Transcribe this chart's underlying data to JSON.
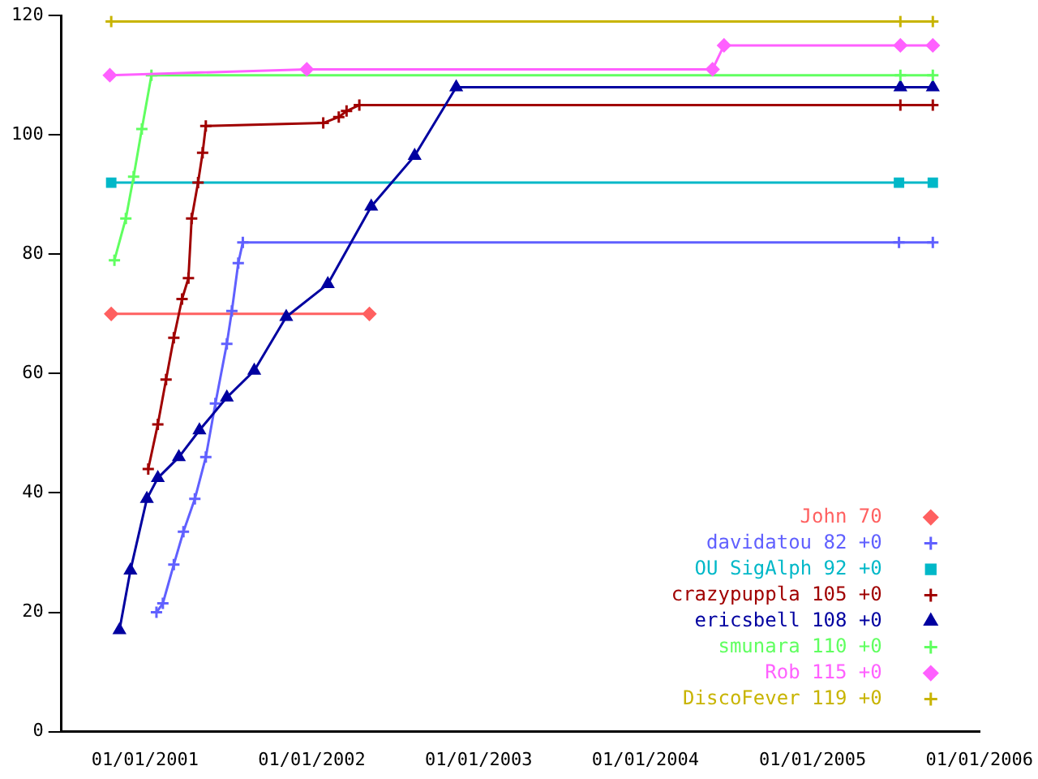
{
  "chart_data": {
    "type": "line",
    "xlim": [
      "2000-07-02",
      "2006-01-01"
    ],
    "xticks": [
      {
        "value": "2001-01-01",
        "label": "01/01/2001"
      },
      {
        "value": "2002-01-01",
        "label": "01/01/2002"
      },
      {
        "value": "2003-01-01",
        "label": "01/01/2003"
      },
      {
        "value": "2004-01-01",
        "label": "01/01/2004"
      },
      {
        "value": "2005-01-01",
        "label": "01/01/2005"
      },
      {
        "value": "2006-01-01",
        "label": "01/01/2006"
      }
    ],
    "ylim": [
      0,
      120
    ],
    "yticks": [
      0,
      20,
      40,
      60,
      80,
      100,
      120
    ],
    "legend": "bottom right",
    "series": [
      {
        "name": "John 70",
        "color": "#ff6060",
        "marker": "diamond",
        "x": [
          "2000-10-19",
          "2002-05-07"
        ],
        "values": [
          70,
          70
        ]
      },
      {
        "name": "davidatou 82 +0",
        "color": "#6060ff",
        "marker": "cross",
        "x": [
          "2001-01-26",
          "2001-02-09",
          "2001-03-05",
          "2001-03-26",
          "2001-04-20",
          "2001-05-14",
          "2001-06-04",
          "2001-06-29",
          "2001-07-10",
          "2001-07-24",
          "2001-08-03",
          "2005-07-09",
          "2005-09-21"
        ],
        "values": [
          20,
          21.5,
          28,
          33.5,
          39,
          46,
          55,
          65,
          70.5,
          78.5,
          82,
          82,
          82
        ]
      },
      {
        "name": "OU SigAlph 92 +0",
        "color": "#00b8c8",
        "marker": "square",
        "x": [
          "2000-10-19",
          "2005-07-09",
          "2005-09-21"
        ],
        "values": [
          92,
          92,
          92
        ]
      },
      {
        "name": "crazypuppla 105 +0",
        "color": "#a00000",
        "marker": "cross",
        "x": [
          "2001-01-08",
          "2001-01-29",
          "2001-02-16",
          "2001-03-05",
          "2001-03-23",
          "2001-04-06",
          "2001-04-13",
          "2001-04-27",
          "2001-05-07",
          "2001-05-14",
          "2002-01-26",
          "2002-03-01",
          "2002-03-18",
          "2002-04-15",
          "2005-07-12",
          "2005-09-21"
        ],
        "values": [
          44,
          51.5,
          59,
          66,
          72.5,
          76,
          86,
          92,
          97,
          101.5,
          102,
          103,
          104,
          105,
          105,
          105
        ]
      },
      {
        "name": "ericsbell 108 +0",
        "color": "#0000a0",
        "marker": "triangle",
        "x": [
          "2000-11-06",
          "2000-11-30",
          "2001-01-05",
          "2001-01-29",
          "2001-03-16",
          "2001-04-30",
          "2001-06-29",
          "2001-08-28",
          "2001-11-06",
          "2002-02-05",
          "2002-05-11",
          "2002-08-14",
          "2002-11-13",
          "2005-07-12",
          "2005-09-21"
        ],
        "values": [
          17,
          27,
          39,
          42.5,
          46,
          50.5,
          56,
          60.5,
          69.5,
          75,
          88,
          96.5,
          108,
          108,
          108
        ]
      },
      {
        "name": "smunara 110 +0",
        "color": "#60ff60",
        "marker": "cross",
        "x": [
          "2000-10-26",
          "2000-11-20",
          "2000-12-07",
          "2000-12-25",
          "2001-01-15",
          "2005-07-12",
          "2005-09-21"
        ],
        "values": [
          79,
          86,
          93,
          101,
          110,
          110,
          110
        ]
      },
      {
        "name": "Rob 115 +0",
        "color": "#ff60ff",
        "marker": "diamond",
        "x": [
          "2000-10-16",
          "2001-12-21",
          "2004-05-27",
          "2004-06-21",
          "2005-07-12",
          "2005-09-21"
        ],
        "values": [
          110,
          111,
          111,
          115,
          115,
          115
        ]
      },
      {
        "name": "DiscoFever 119 +0",
        "color": "#c8b400",
        "marker": "cross",
        "x": [
          "2000-10-19",
          "2005-07-12",
          "2005-09-21"
        ],
        "values": [
          119,
          119,
          119
        ]
      }
    ]
  }
}
